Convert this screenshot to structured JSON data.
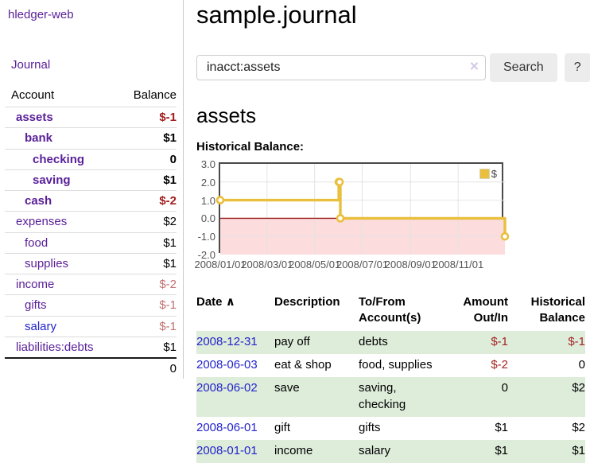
{
  "sidebar": {
    "app_title": "hledger-web",
    "nav": {
      "journal_label": "Journal"
    },
    "accounts_table": {
      "col_account": "Account",
      "col_balance": "Balance",
      "rows": [
        {
          "name": "assets",
          "depth": 1,
          "bold": true,
          "link_color": "purple",
          "balance": "$-1",
          "tone": "neg-strong"
        },
        {
          "name": "bank",
          "depth": 2,
          "bold": true,
          "link_color": "purple",
          "balance": "$1",
          "tone": "normal"
        },
        {
          "name": "checking",
          "depth": 3,
          "bold": true,
          "link_color": "purple",
          "balance": "0",
          "tone": "normal"
        },
        {
          "name": "saving",
          "depth": 3,
          "bold": true,
          "link_color": "purple",
          "balance": "$1",
          "tone": "normal"
        },
        {
          "name": "cash",
          "depth": 2,
          "bold": true,
          "link_color": "purple",
          "balance": "$-2",
          "tone": "neg-strong"
        },
        {
          "name": "expenses",
          "depth": 1,
          "bold": false,
          "link_color": "purple",
          "balance": "$2",
          "tone": "normal"
        },
        {
          "name": "food",
          "depth": 2,
          "bold": false,
          "link_color": "purple",
          "balance": "$1",
          "tone": "normal"
        },
        {
          "name": "supplies",
          "depth": 2,
          "bold": false,
          "link_color": "purple",
          "balance": "$1",
          "tone": "normal"
        },
        {
          "name": "income",
          "depth": 1,
          "bold": false,
          "link_color": "purple",
          "balance": "$-2",
          "tone": "neg-soft"
        },
        {
          "name": "gifts",
          "depth": 2,
          "bold": false,
          "link_color": "purple",
          "balance": "$-1",
          "tone": "neg-soft"
        },
        {
          "name": "salary",
          "depth": 2,
          "bold": false,
          "link_color": "blue",
          "balance": "$-1",
          "tone": "neg-soft"
        },
        {
          "name": "liabilities:debts",
          "depth": 1,
          "bold": false,
          "link_color": "purple",
          "balance": "$1",
          "tone": "normal"
        }
      ],
      "total": "0"
    }
  },
  "header": {
    "title": "sample.journal"
  },
  "search": {
    "value": "inacct:assets",
    "clear_icon": "×",
    "button_label": "Search",
    "help_label": "?"
  },
  "account_view": {
    "heading": "assets",
    "chart_label": "Historical Balance:"
  },
  "chart_data": {
    "type": "line",
    "step": true,
    "title": "Historical Balance:",
    "legend": [
      {
        "label": "$",
        "color": "#e9bf3d"
      }
    ],
    "x_range": [
      "2008-01-01",
      "2008-12-31"
    ],
    "ylim": [
      -2.0,
      3.0
    ],
    "yticks": [
      3.0,
      2.0,
      1.0,
      0.0,
      -1.0,
      -2.0
    ],
    "ytick_labels": [
      "3.0",
      "2.0",
      "1.0",
      "0.0",
      "-1.0",
      "-2.0"
    ],
    "xticks": [
      "2008-01-01",
      "2008-03-01",
      "2008-05-01",
      "2008-07-01",
      "2008-09-01",
      "2008-11-01"
    ],
    "xtick_labels": [
      "2008/01/01",
      "2008/03/01",
      "2008/05/01",
      "2008/07/01",
      "2008/09/01",
      "2008/11/01"
    ],
    "series": [
      {
        "name": "$",
        "color": "#e9bf3d",
        "points": [
          [
            "2008-01-01",
            1
          ],
          [
            "2008-06-01",
            2
          ],
          [
            "2008-06-02",
            2
          ],
          [
            "2008-06-03",
            0
          ],
          [
            "2008-12-31",
            -1
          ]
        ]
      }
    ],
    "grid": true,
    "grid_color": "#e4e4e4",
    "zero_line_color": "#9c1f1f",
    "negative_fill_color": "#fcdcdc",
    "legend_position": "top-right"
  },
  "register": {
    "columns": [
      "Date",
      "Description",
      "To/From Account(s)",
      "Amount Out/In",
      "Historical Balance"
    ],
    "sort_caret": "∧",
    "rows": [
      {
        "date": "2008-12-31",
        "description": "pay off",
        "accounts": "debts",
        "amount": "$-1",
        "amount_neg": true,
        "balance": "$-1",
        "balance_neg": true,
        "shade": true
      },
      {
        "date": "2008-06-03",
        "description": "eat & shop",
        "accounts": "food, supplies",
        "amount": "$-2",
        "amount_neg": true,
        "balance": "0",
        "balance_neg": false,
        "shade": false
      },
      {
        "date": "2008-06-02",
        "description": "save",
        "accounts": "saving, checking",
        "amount": "0",
        "amount_neg": false,
        "balance": "$2",
        "balance_neg": false,
        "shade": true
      },
      {
        "date": "2008-06-01",
        "description": "gift",
        "accounts": "gifts",
        "amount": "$1",
        "amount_neg": false,
        "balance": "$2",
        "balance_neg": false,
        "shade": false
      },
      {
        "date": "2008-01-01",
        "description": "income",
        "accounts": "salary",
        "amount": "$1",
        "amount_neg": false,
        "balance": "$1",
        "balance_neg": false,
        "shade": true
      }
    ]
  }
}
